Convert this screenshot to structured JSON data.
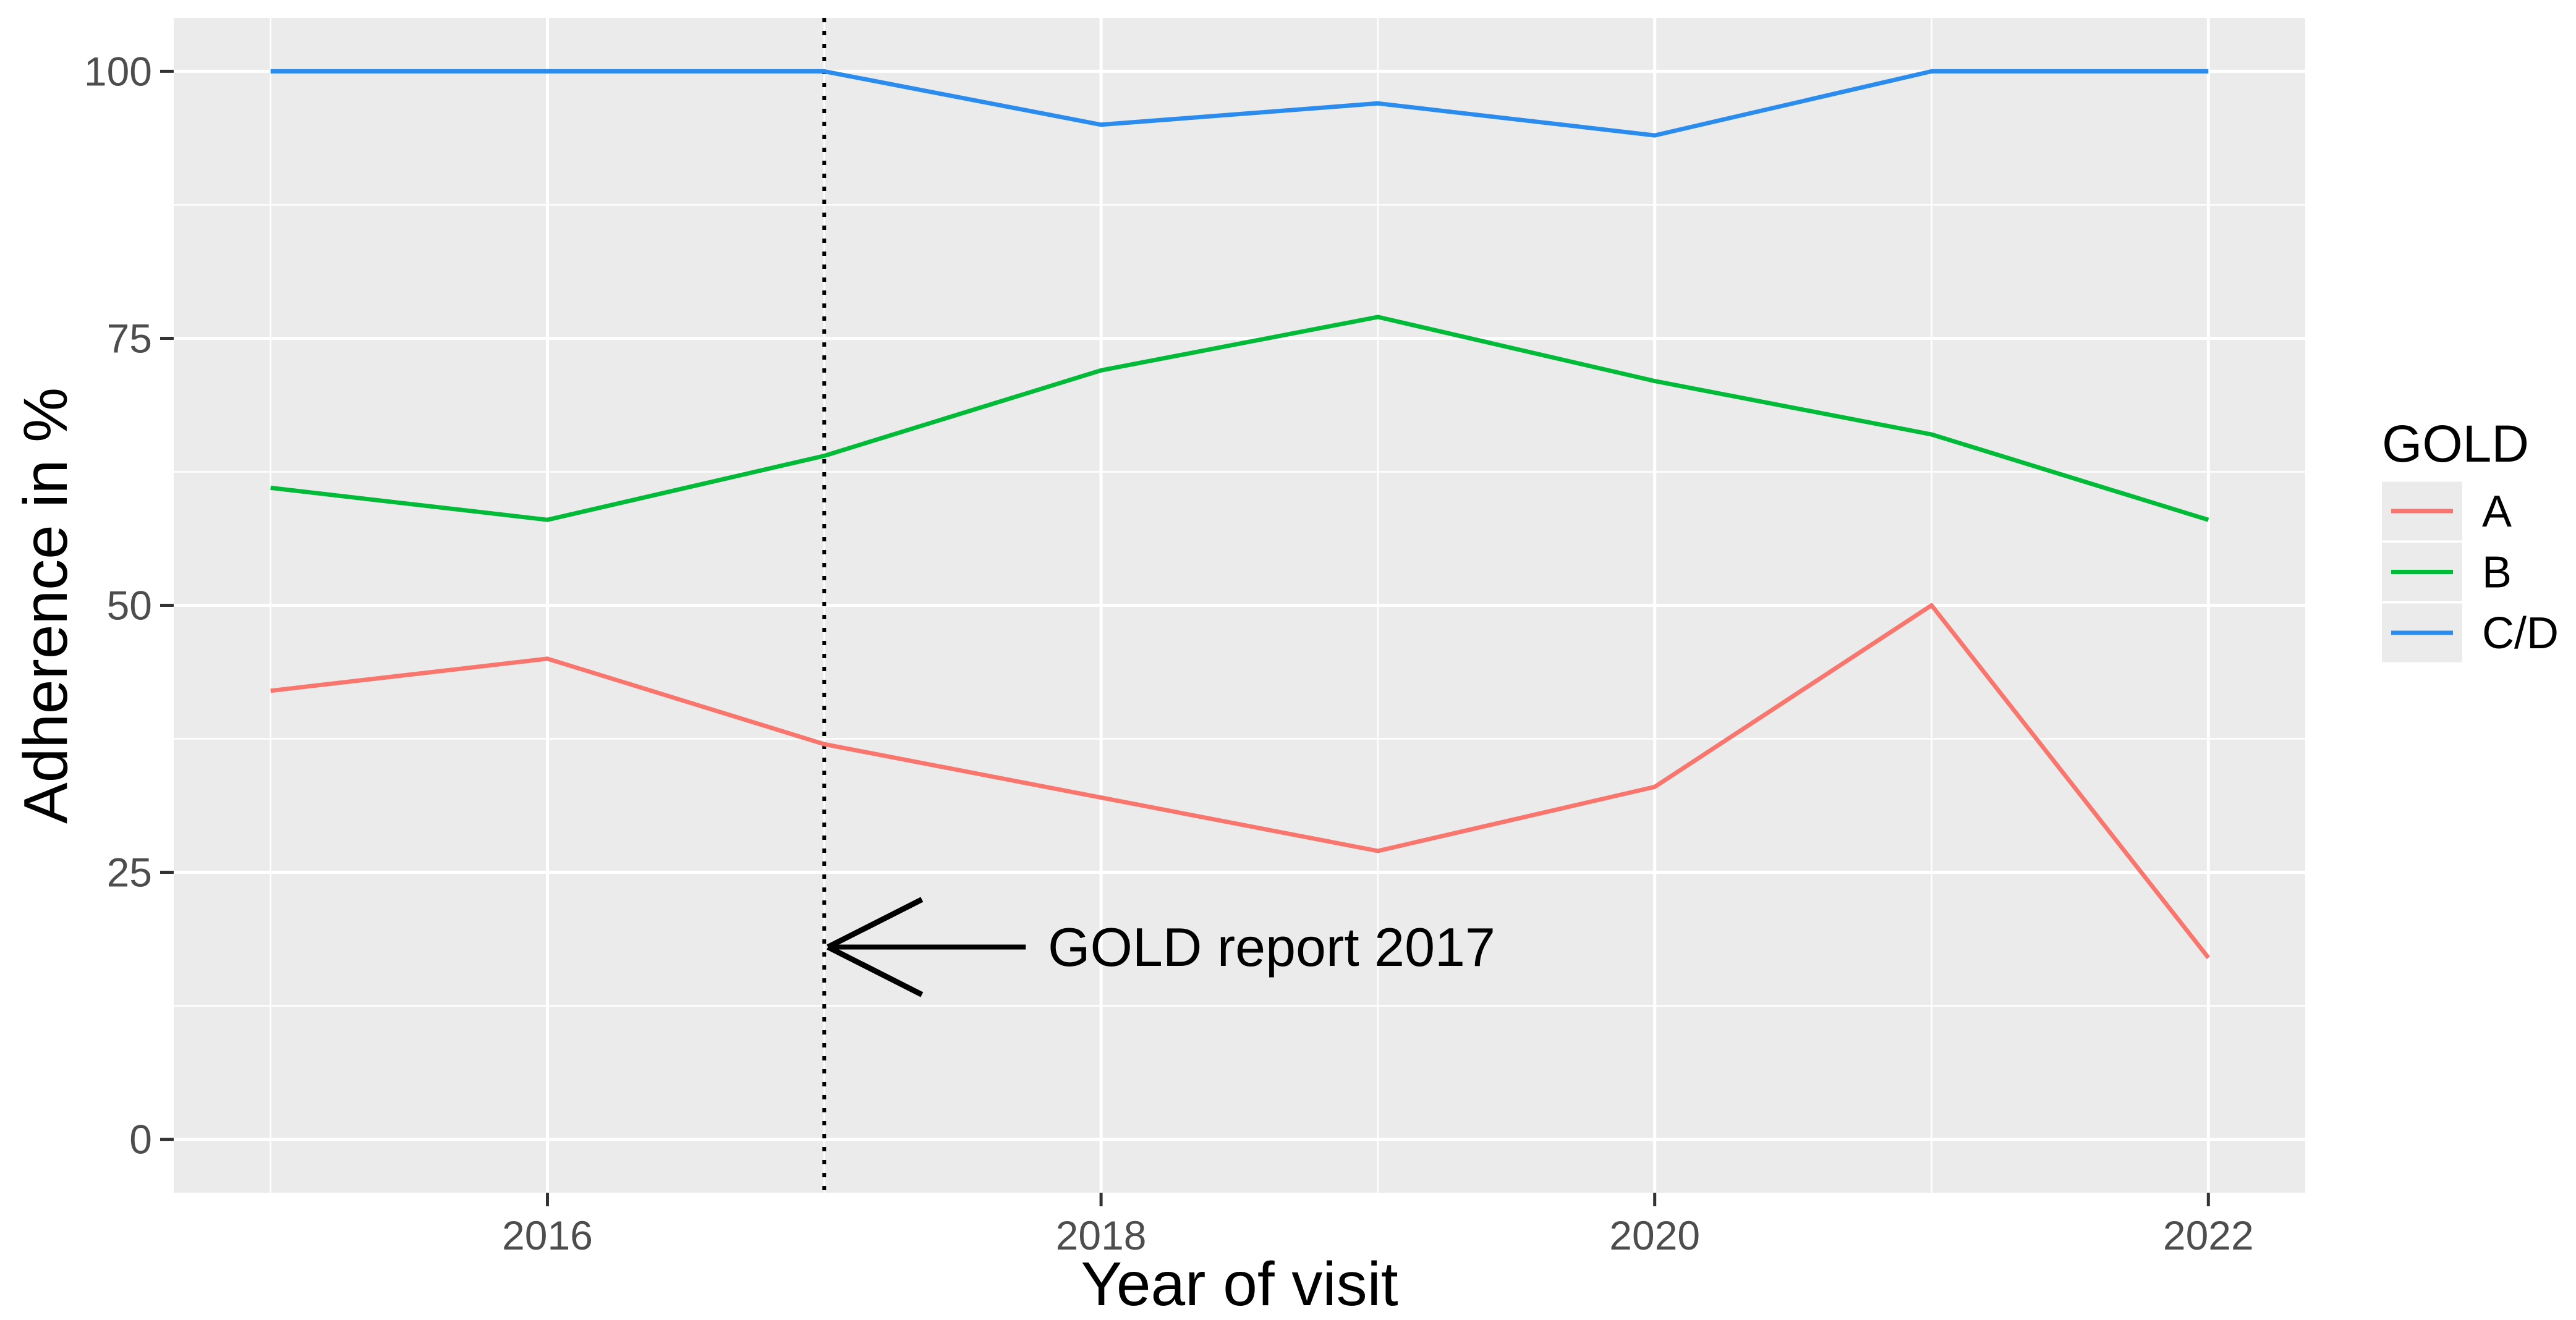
{
  "chart_data": {
    "type": "line",
    "title": "",
    "xlabel": "Year of visit",
    "ylabel": "Adherence in %",
    "x": [
      2015,
      2016,
      2017,
      2018,
      2019,
      2020,
      2021,
      2022
    ],
    "series": [
      {
        "name": "A",
        "color": "#F8766D",
        "values": [
          42,
          45,
          37,
          32,
          27,
          33,
          50,
          17
        ]
      },
      {
        "name": "B",
        "color": "#00BA38",
        "values": [
          61,
          58,
          64,
          72,
          77,
          71,
          66,
          58
        ]
      },
      {
        "name": "C/D",
        "color": "#2B8CEE",
        "values": [
          100,
          100,
          100,
          95,
          97,
          94,
          100,
          100
        ]
      }
    ],
    "xticks": [
      2016,
      2018,
      2020,
      2022
    ],
    "yticks": [
      0,
      25,
      50,
      75,
      100
    ],
    "x_minor": [
      2015,
      2017,
      2019,
      2021
    ],
    "y_minor": [
      12.5,
      37.5,
      62.5,
      87.5
    ],
    "xlim": [
      2014.65,
      2022.35
    ],
    "ylim": [
      -5,
      105
    ],
    "grid": "on",
    "legend": {
      "title": "GOLD",
      "position": "right",
      "entries": [
        {
          "label": "A",
          "color": "#F8766D"
        },
        {
          "label": "B",
          "color": "#00BA38"
        },
        {
          "label": "C/D",
          "color": "#2B8CEE"
        }
      ]
    },
    "annotation": {
      "text": "GOLD report 2017",
      "points_to_year": 2017,
      "y_percent": 18
    },
    "reference_line": {
      "x": 2017,
      "style": "dotted",
      "color": "#000000"
    },
    "style": {
      "panel_bg": "#EBEBEB",
      "grid_color": "#FFFFFF",
      "tick_label_color": "#4D4D4D",
      "tick_mark_color": "#333333",
      "text_color": "#000000",
      "legend_key_bg": "#EBEBEB"
    }
  }
}
